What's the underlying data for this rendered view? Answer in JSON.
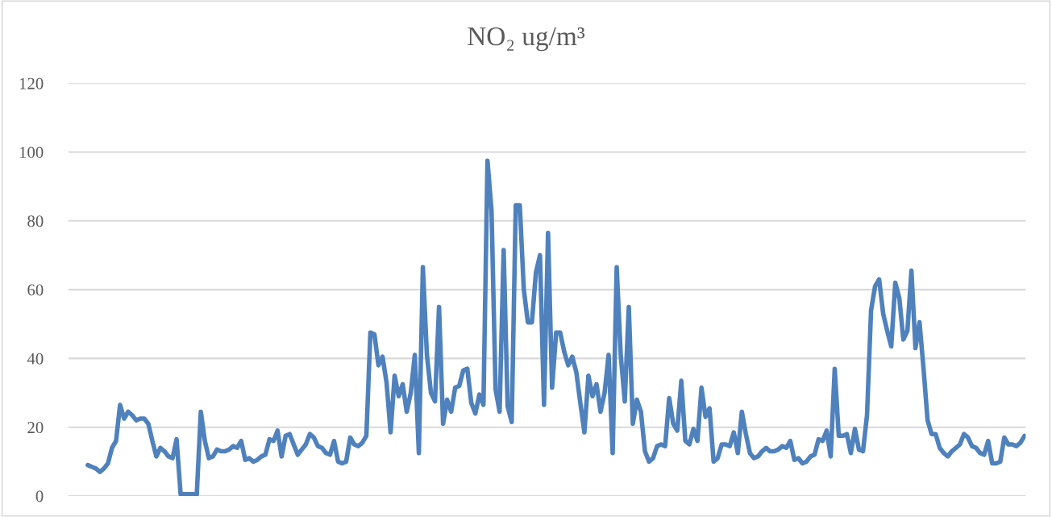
{
  "chart_data": {
    "type": "line",
    "title": "NO₂ ug/m³",
    "categories": [
      null,
      null,
      null,
      null,
      null,
      null,
      null,
      null,
      null,
      null,
      null,
      null,
      null,
      null,
      null,
      null,
      null,
      null,
      null,
      null,
      null,
      null,
      null,
      null,
      null,
      null,
      null,
      null,
      null,
      null,
      null,
      null,
      null,
      null,
      null,
      null,
      null,
      null,
      null,
      null,
      null,
      null,
      null,
      null,
      null,
      null,
      null,
      null,
      null,
      null,
      null,
      null,
      null,
      null,
      null,
      null,
      null,
      null,
      null,
      null,
      null,
      null,
      null,
      null,
      null,
      null,
      null,
      null,
      null,
      null,
      null,
      null,
      null,
      null,
      null,
      null,
      null,
      null,
      null,
      null,
      null,
      null,
      null,
      null,
      null,
      null,
      null,
      null,
      null,
      null,
      null,
      null,
      null,
      null,
      null,
      null,
      null,
      null,
      null,
      null,
      null,
      null,
      null,
      null,
      null,
      null,
      null,
      null,
      null,
      null,
      null,
      null,
      null,
      null,
      null,
      null,
      null,
      null,
      null,
      null,
      null,
      null,
      null,
      null,
      null,
      null,
      null,
      null,
      null,
      null,
      null,
      null,
      null,
      null,
      null,
      null,
      null,
      null,
      null,
      null,
      null,
      null,
      null,
      null,
      null,
      null,
      null,
      null,
      null,
      null,
      null,
      null,
      null,
      null,
      null,
      null,
      null,
      null,
      null,
      null,
      null,
      null,
      null,
      null,
      null,
      null,
      null,
      null,
      null,
      null,
      null,
      null,
      null,
      null,
      null,
      null,
      null,
      null,
      null,
      null,
      null,
      null,
      null,
      null,
      null,
      null,
      null,
      null,
      null,
      null,
      null,
      null,
      null,
      null,
      null,
      null,
      null,
      null,
      null,
      null,
      null,
      null,
      null,
      null,
      null,
      null,
      null,
      null,
      null,
      null,
      null,
      null,
      null,
      null,
      null,
      null,
      null,
      null,
      null,
      null,
      null,
      null,
      null,
      null,
      null,
      null,
      null,
      null,
      null,
      null,
      null,
      null,
      null
    ],
    "series": [
      {
        "color": "#4f81bd",
        "values": [
          9,
          8.5,
          8,
          7,
          8,
          9.5,
          14,
          16,
          26.5,
          22.5,
          24.5,
          23.5,
          22,
          22.5,
          22.5,
          21,
          16,
          11.5,
          14,
          13,
          11.5,
          11,
          16.5,
          0.5,
          0.5,
          0.5,
          0.5,
          0.5,
          24.5,
          16,
          11,
          11.5,
          13.5,
          13,
          13,
          13.5,
          14.5,
          14,
          16,
          10.5,
          11,
          10,
          10.5,
          11.5,
          12,
          16.5,
          16,
          19,
          11.5,
          17.5,
          18,
          15,
          12,
          13.5,
          15,
          18,
          17,
          14.5,
          14,
          12.5,
          12,
          16,
          10,
          9.5,
          10,
          17,
          15,
          14.5,
          15.5,
          17.5,
          47.5,
          47,
          38,
          40.5,
          33,
          18.5,
          35,
          29,
          32.5,
          24.5,
          30,
          41,
          12.5,
          66.5,
          41,
          30,
          27.5,
          55,
          21,
          28,
          24.5,
          31.5,
          32,
          36.5,
          37,
          27,
          24,
          29.5,
          26.5,
          97.5,
          83,
          31,
          24.5,
          71.5,
          26,
          21.5,
          84.5,
          84.5,
          60,
          50.5,
          50.5,
          65,
          70,
          26.5,
          76.5,
          31.5,
          47.5,
          47.5,
          42,
          38,
          40.5,
          36,
          27,
          18.5,
          35,
          29,
          32.5,
          24.5,
          30,
          41,
          12.5,
          66.5,
          41,
          27.5,
          55,
          21,
          28,
          24.5,
          13,
          10,
          11,
          14.5,
          15,
          14.5,
          28.5,
          21,
          19,
          33.5,
          16,
          15,
          19.5,
          16,
          31.5,
          23,
          25.5,
          10,
          11,
          15,
          15,
          14.5,
          18.5,
          12.5,
          24.5,
          18,
          12.5,
          11,
          11.5,
          13,
          14,
          13,
          13,
          13.5,
          14.5,
          14,
          16,
          10.5,
          11,
          9.5,
          10,
          11.5,
          12,
          16.5,
          16,
          19,
          11.5,
          37,
          17.5,
          17.5,
          18,
          12.5,
          19.5,
          13.5,
          13,
          23.5,
          54,
          61,
          63,
          53,
          48,
          43.5,
          62,
          57.5,
          45.5,
          48,
          65.5,
          43,
          50.5,
          37,
          22,
          18,
          18,
          14,
          12.5,
          11.5,
          13,
          14,
          15,
          18,
          17,
          14.5,
          14,
          12.5,
          12,
          16,
          9.5,
          9.5,
          10,
          17,
          15,
          15,
          14.5,
          15.5,
          17.5
        ]
      }
    ],
    "ylim": [
      0,
      120
    ],
    "yticks": [
      0,
      20,
      40,
      60,
      80,
      100,
      120
    ],
    "grid": "y",
    "tick_labels": "y",
    "marker": "none",
    "line_style": "solid"
  }
}
